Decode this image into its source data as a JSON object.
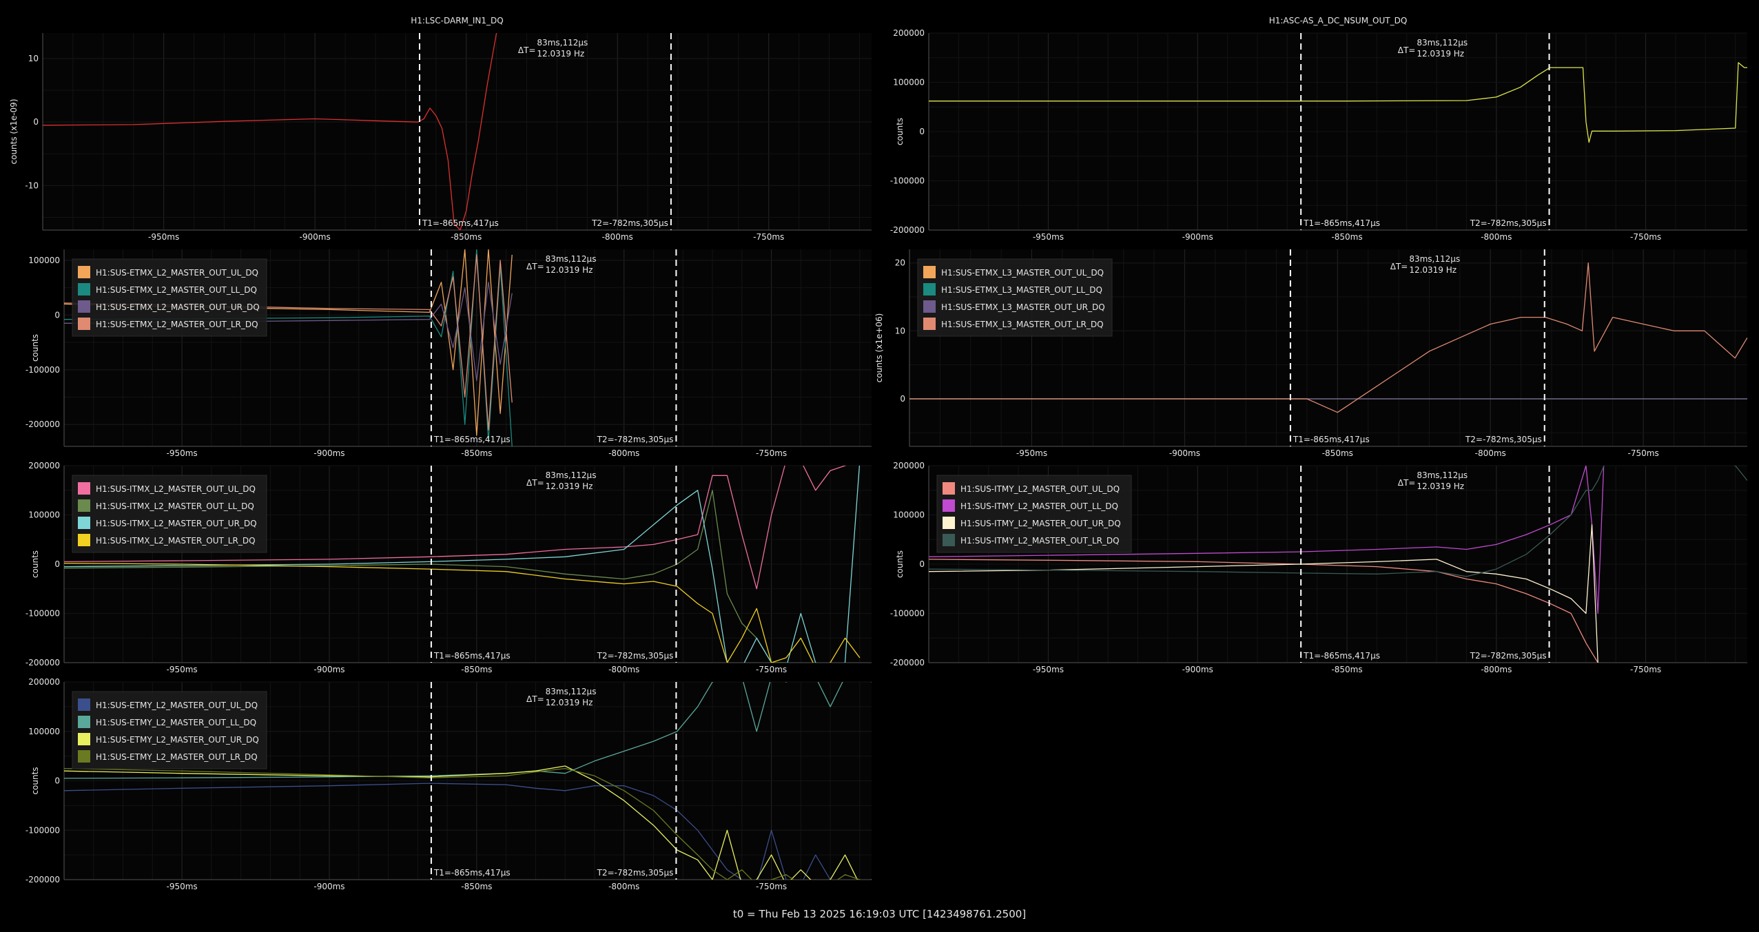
{
  "footer": "t0 = Thu Feb 13 2025 16:19:03 UTC [1423498761.2500]",
  "x_ticks": [
    "-950ms",
    "-900ms",
    "-850ms",
    "-800ms",
    "-750ms"
  ],
  "cursors": {
    "t1_label": "T1=-865ms,417µs",
    "t2_label": "T2=-782ms,305µs",
    "dt_prefix": "ΔT=",
    "dt_value": "83ms,112µs",
    "dt_freq": "12.0319 Hz"
  },
  "chart_data": [
    {
      "type": "line",
      "title": "H1:LSC-DARM_IN1_DQ",
      "ylabel": "counts (x1e-09)",
      "xlim": [
        -990,
        -716
      ],
      "ylim": [
        -17,
        14
      ],
      "yticks": [
        10,
        0,
        -10
      ],
      "ytick_labels": [
        "10",
        "0",
        "-10"
      ],
      "x": [
        -990,
        -960,
        -930,
        -900,
        -880,
        -866,
        -864,
        -862,
        -860,
        -858,
        -856,
        -854,
        -852,
        -850,
        -848,
        -846,
        -843,
        -840
      ],
      "series": [
        {
          "color": "#e03030",
          "values": [
            -0.5,
            -0.4,
            0.1,
            0.5,
            0.2,
            0.0,
            0.5,
            2.2,
            1.0,
            -1.0,
            -6.0,
            -16.0,
            -17.0,
            -14.0,
            -8.0,
            -3.0,
            6.0,
            14.0
          ]
        }
      ]
    },
    {
      "type": "line",
      "title": "H1:ASC-AS_A_DC_NSUM_OUT_DQ",
      "ylabel": "counts",
      "xlim": [
        -990,
        -716
      ],
      "ylim": [
        -200000,
        200000
      ],
      "yticks": [
        200000,
        100000,
        0,
        -100000,
        -200000
      ],
      "ytick_labels": [
        "200000",
        "100000",
        "0",
        "-100000",
        "-200000"
      ],
      "x": [
        -990,
        -900,
        -850,
        -810,
        -800,
        -792,
        -786,
        -782,
        -776,
        -771,
        -770,
        -769,
        -768,
        -760,
        -740,
        -720,
        -719,
        -718,
        -717,
        -716
      ],
      "series": [
        {
          "color": "#dde64a",
          "values": [
            62000,
            62000,
            62000,
            63000,
            70000,
            90000,
            115000,
            130000,
            130000,
            130000,
            20000,
            -22000,
            1000,
            1000,
            2000,
            7000,
            140000,
            135000,
            130000,
            130000
          ]
        }
      ]
    },
    {
      "type": "line",
      "ylabel": "counts",
      "xlim": [
        -990,
        -716
      ],
      "ylim": [
        -240000,
        120000
      ],
      "yticks": [
        100000,
        0,
        -100000,
        -200000
      ],
      "ytick_labels": [
        "100000",
        "0",
        "-100000",
        "-200000"
      ],
      "legend": {
        "position": "top-left"
      },
      "x": [
        -990,
        -950,
        -900,
        -866,
        -862,
        -858,
        -854,
        -850,
        -846,
        -842,
        -838
      ],
      "series": [
        {
          "name": "H1:SUS-ETMX_L2_MASTER_OUT_UL_DQ",
          "color": "#f2a65a",
          "values": [
            20000,
            15000,
            10000,
            5000,
            60000,
            -100000,
            120000,
            -220000,
            120000,
            -180000,
            110000
          ]
        },
        {
          "name": "H1:SUS-ETMX_L2_MASTER_OUT_LL_DQ",
          "color": "#1b8a80",
          "values": [
            -8000,
            -7000,
            -5000,
            -2000,
            -40000,
            80000,
            -200000,
            120000,
            -230000,
            90000,
            -240000
          ]
        },
        {
          "name": "H1:SUS-ETMX_L2_MASTER_OUT_UR_DQ",
          "color": "#6e5a8c",
          "values": [
            -15000,
            -13000,
            -10000,
            -8000,
            20000,
            -60000,
            50000,
            -120000,
            60000,
            -90000,
            40000
          ]
        },
        {
          "name": "H1:SUS-ETMX_L2_MASTER_OUT_LR_DQ",
          "color": "#e08a72",
          "values": [
            22000,
            18000,
            12000,
            10000,
            -20000,
            70000,
            -150000,
            110000,
            -210000,
            100000,
            -160000
          ]
        }
      ]
    },
    {
      "type": "line",
      "ylabel": "counts (x1e+06)",
      "xlim": [
        -990,
        -716
      ],
      "ylim": [
        -7,
        22
      ],
      "yticks": [
        20,
        10,
        0
      ],
      "ytick_labels": [
        "20",
        "10",
        "0"
      ],
      "legend": {
        "position": "top-left"
      },
      "x": [
        -990,
        -900,
        -870,
        -860,
        -850,
        -840,
        -830,
        -820,
        -810,
        -800,
        -790,
        -782,
        -775,
        -770,
        -768,
        -766,
        -760,
        -750,
        -740,
        -730,
        -725,
        -720,
        -716
      ],
      "series": [
        {
          "name": "H1:SUS-ETMX_L3_MASTER_OUT_UL_DQ",
          "color": "#f2a65a",
          "values": [
            0,
            0,
            0,
            0,
            0,
            0,
            0,
            0,
            0,
            0,
            0,
            0,
            0,
            0,
            0,
            0,
            0,
            0,
            0,
            0,
            0,
            0,
            0
          ]
        },
        {
          "name": "H1:SUS-ETMX_L3_MASTER_OUT_LL_DQ",
          "color": "#1b8a80",
          "values": [
            0,
            0,
            0,
            0,
            0,
            0,
            0,
            0,
            0,
            0,
            0,
            0,
            0,
            0,
            0,
            0,
            0,
            0,
            0,
            0,
            0,
            0,
            0
          ]
        },
        {
          "name": "H1:SUS-ETMX_L3_MASTER_OUT_UR_DQ",
          "color": "#6e5a8c",
          "values": [
            0,
            0,
            0,
            0,
            0,
            0,
            0,
            0,
            0,
            0,
            0,
            0,
            0,
            0,
            0,
            0,
            0,
            0,
            0,
            0,
            0,
            0,
            0
          ]
        },
        {
          "name": "H1:SUS-ETMX_L3_MASTER_OUT_LR_DQ",
          "color": "#e08a72",
          "values": [
            0,
            0,
            0,
            0,
            -2,
            1,
            4,
            7,
            9,
            11,
            12,
            12,
            11,
            10,
            20,
            7,
            12,
            11,
            10,
            10,
            8,
            6,
            9
          ]
        }
      ]
    },
    {
      "type": "line",
      "ylabel": "counts",
      "xlim": [
        -990,
        -716
      ],
      "ylim": [
        -200000,
        200000
      ],
      "yticks": [
        200000,
        100000,
        0,
        -100000,
        -200000
      ],
      "ytick_labels": [
        "200000",
        "100000",
        "0",
        "-100000",
        "-200000"
      ],
      "legend": {
        "position": "top-left"
      },
      "x": [
        -990,
        -950,
        -900,
        -866,
        -840,
        -820,
        -800,
        -790,
        -782,
        -775,
        -770,
        -765,
        -760,
        -755,
        -750,
        -745,
        -740,
        -735,
        -730,
        -725,
        -720
      ],
      "series": [
        {
          "name": "H1:SUS-ITMX_L2_MASTER_OUT_UL_DQ",
          "color": "#f06ea0",
          "values": [
            5000,
            7000,
            10000,
            15000,
            20000,
            30000,
            35000,
            40000,
            50000,
            60000,
            180000,
            180000,
            60000,
            -50000,
            100000,
            210000,
            210000,
            150000,
            190000,
            200000,
            210000
          ]
        },
        {
          "name": "H1:SUS-ITMX_L2_MASTER_OUT_LL_DQ",
          "color": "#6a8a4e",
          "values": [
            -8000,
            -6000,
            -3000,
            0,
            -5000,
            -20000,
            -30000,
            -20000,
            0,
            30000,
            150000,
            -60000,
            -120000,
            -150000,
            -200000,
            -200000,
            -210000,
            -210000,
            -200000,
            -210000,
            -210000
          ]
        },
        {
          "name": "H1:SUS-ITMX_L2_MASTER_OUT_UR_DQ",
          "color": "#7fd6d6",
          "values": [
            -5000,
            -3000,
            0,
            5000,
            10000,
            15000,
            30000,
            80000,
            120000,
            150000,
            -10000,
            -200000,
            -210000,
            -150000,
            -200000,
            -210000,
            -100000,
            -200000,
            -210000,
            -200000,
            210000
          ]
        },
        {
          "name": "H1:SUS-ITMX_L2_MASTER_OUT_LR_DQ",
          "color": "#f0d020",
          "values": [
            2000,
            0,
            -5000,
            -10000,
            -15000,
            -30000,
            -40000,
            -35000,
            -45000,
            -80000,
            -100000,
            -200000,
            -150000,
            -90000,
            -200000,
            -190000,
            -150000,
            -210000,
            -200000,
            -150000,
            -190000
          ]
        }
      ]
    },
    {
      "type": "line",
      "ylabel": "counts",
      "xlim": [
        -990,
        -716
      ],
      "ylim": [
        -200000,
        200000
      ],
      "yticks": [
        200000,
        100000,
        0,
        -100000,
        -200000
      ],
      "ytick_labels": [
        "200000",
        "100000",
        "0",
        "-100000",
        "-200000"
      ],
      "legend": {
        "position": "top-left"
      },
      "x": [
        -990,
        -950,
        -900,
        -866,
        -840,
        -820,
        -810,
        -800,
        -790,
        -782,
        -775,
        -770,
        -768,
        -766,
        -764,
        -760,
        -750,
        -740,
        -730,
        -720,
        -716
      ],
      "series": [
        {
          "name": "H1:SUS-ITMY_L2_MASTER_OUT_UL_DQ",
          "color": "#f08a80",
          "values": [
            10000,
            8000,
            5000,
            0,
            -5000,
            -15000,
            -30000,
            -40000,
            -60000,
            -80000,
            -100000,
            -160000,
            -180000,
            -200000,
            -210000,
            -210000,
            -210000,
            -210000,
            -210000,
            -210000,
            -210000
          ]
        },
        {
          "name": "H1:SUS-ITMY_L2_MASTER_OUT_LL_DQ",
          "color": "#c04ad0",
          "values": [
            15000,
            18000,
            22000,
            25000,
            30000,
            35000,
            30000,
            40000,
            60000,
            80000,
            100000,
            200000,
            80000,
            -100000,
            210000,
            210000,
            210000,
            210000,
            210000,
            210000,
            210000
          ]
        },
        {
          "name": "H1:SUS-ITMY_L2_MASTER_OUT_UR_DQ",
          "color": "#fff4d0",
          "values": [
            -15000,
            -12000,
            -5000,
            0,
            5000,
            10000,
            -15000,
            -20000,
            -30000,
            -50000,
            -70000,
            -100000,
            80000,
            -200000,
            -210000,
            -210000,
            -210000,
            -210000,
            -210000,
            -210000,
            -210000
          ]
        },
        {
          "name": "H1:SUS-ITMY_L2_MASTER_OUT_LR_DQ",
          "color": "#3a5a55",
          "values": [
            -10000,
            -12000,
            -15000,
            -18000,
            -20000,
            -15000,
            -25000,
            -10000,
            20000,
            60000,
            100000,
            150000,
            150000,
            170000,
            200000,
            210000,
            210000,
            210000,
            210000,
            200000,
            170000
          ]
        }
      ]
    },
    {
      "type": "line",
      "ylabel": "counts",
      "xlim": [
        -990,
        -716
      ],
      "ylim": [
        -200000,
        200000
      ],
      "yticks": [
        200000,
        100000,
        0,
        -100000,
        -200000
      ],
      "ytick_labels": [
        "200000",
        "100000",
        "0",
        "-100000",
        "-200000"
      ],
      "legend": {
        "position": "top-left"
      },
      "x": [
        -990,
        -950,
        -900,
        -866,
        -840,
        -830,
        -820,
        -810,
        -800,
        -790,
        -782,
        -775,
        -770,
        -765,
        -760,
        -755,
        -750,
        -745,
        -740,
        -735,
        -730,
        -725,
        -720,
        -716
      ],
      "series": [
        {
          "name": "H1:SUS-ETMY_L2_MASTER_OUT_UL_DQ",
          "color": "#3a4f8c",
          "values": [
            -20000,
            -15000,
            -10000,
            -5000,
            -8000,
            -15000,
            -20000,
            -10000,
            -10000,
            -30000,
            -60000,
            -100000,
            -140000,
            -180000,
            -200000,
            -210000,
            -100000,
            -200000,
            -210000,
            -150000,
            -200000,
            -210000,
            -200000,
            -210000
          ]
        },
        {
          "name": "H1:SUS-ETMY_L2_MASTER_OUT_LL_DQ",
          "color": "#5aa89a",
          "values": [
            5000,
            6000,
            8000,
            10000,
            15000,
            20000,
            15000,
            40000,
            60000,
            80000,
            100000,
            150000,
            200000,
            210000,
            210000,
            100000,
            210000,
            200000,
            210000,
            210000,
            150000,
            210000,
            210000,
            200000
          ]
        },
        {
          "name": "H1:SUS-ETMY_L2_MASTER_OUT_UR_DQ",
          "color": "#e8f060",
          "values": [
            20000,
            15000,
            10000,
            8000,
            15000,
            20000,
            30000,
            0,
            -40000,
            -90000,
            -140000,
            -160000,
            -200000,
            -100000,
            -210000,
            -200000,
            -150000,
            -210000,
            -180000,
            -210000,
            -200000,
            -150000,
            -210000,
            -200000
          ]
        },
        {
          "name": "H1:SUS-ETMY_L2_MASTER_OUT_LR_DQ",
          "color": "#6a7a20",
          "values": [
            25000,
            20000,
            12000,
            6000,
            10000,
            18000,
            25000,
            10000,
            -20000,
            -60000,
            -110000,
            -150000,
            -180000,
            -200000,
            -180000,
            -210000,
            -200000,
            -190000,
            -210000,
            -200000,
            -210000,
            -190000,
            -200000,
            -210000
          ]
        }
      ]
    }
  ]
}
